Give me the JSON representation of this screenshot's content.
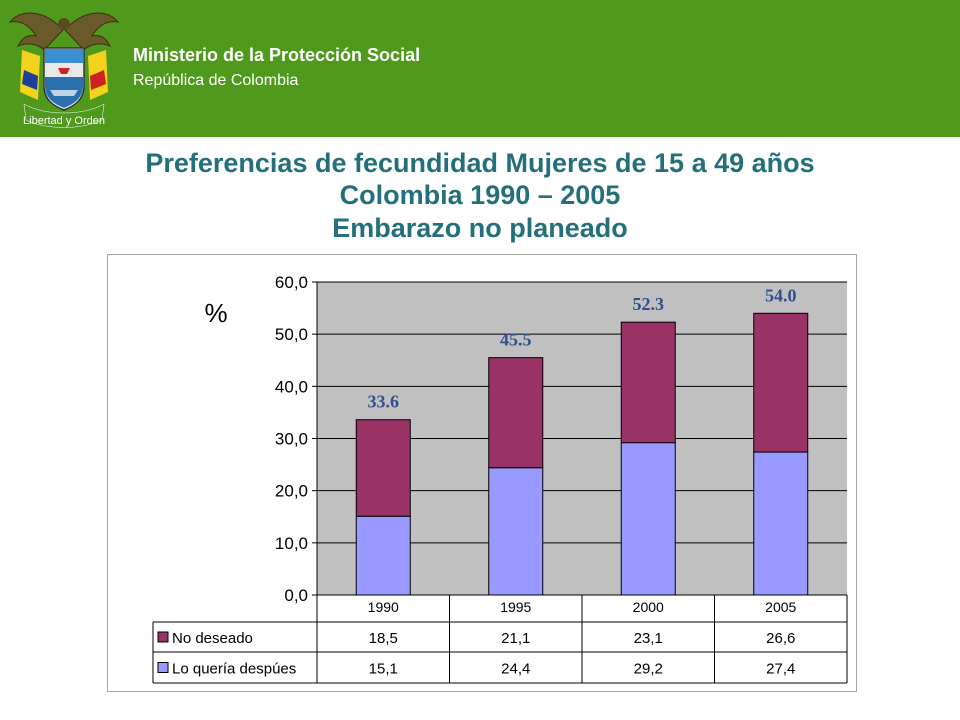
{
  "header": {
    "ministry": "Ministerio de la Protección Social",
    "republic": "República de Colombia",
    "logo_icon": "coat-of-arms-icon",
    "logo_motto": "Libertad y Orden",
    "background_color": "#4f9a1c"
  },
  "title": {
    "line1": "Preferencias de fecundidad Mujeres de 15 a 49 años",
    "line2": "Colombia 1990 – 2005",
    "line3": "Embarazo no planeado",
    "color": "#23707a"
  },
  "chart_data": {
    "type": "bar",
    "stacked": true,
    "ylabel": "%",
    "ylim": [
      0,
      60
    ],
    "yticks": [
      "0,0",
      "10,0",
      "20,0",
      "30,0",
      "40,0",
      "50,0",
      "60,0"
    ],
    "categories": [
      "1990",
      "1995",
      "2000",
      "2005"
    ],
    "series": [
      {
        "name": "Lo quería despúes",
        "color": "#9999ff",
        "values": [
          15.1,
          24.4,
          29.2,
          27.4
        ],
        "labels": [
          "15,1",
          "24,4",
          "29,2",
          "27,4"
        ]
      },
      {
        "name": "No deseado",
        "color": "#993366",
        "values": [
          18.5,
          21.1,
          23.1,
          26.6
        ],
        "labels": [
          "18,5",
          "21,1",
          "23,1",
          "26,6"
        ]
      }
    ],
    "totals": [
      33.6,
      45.5,
      52.3,
      54.0
    ],
    "total_labels": [
      "33.6",
      "45.5",
      "52.3",
      "54.0"
    ],
    "data_table": true,
    "plot_background": "#c0c0c0",
    "grid": true
  }
}
